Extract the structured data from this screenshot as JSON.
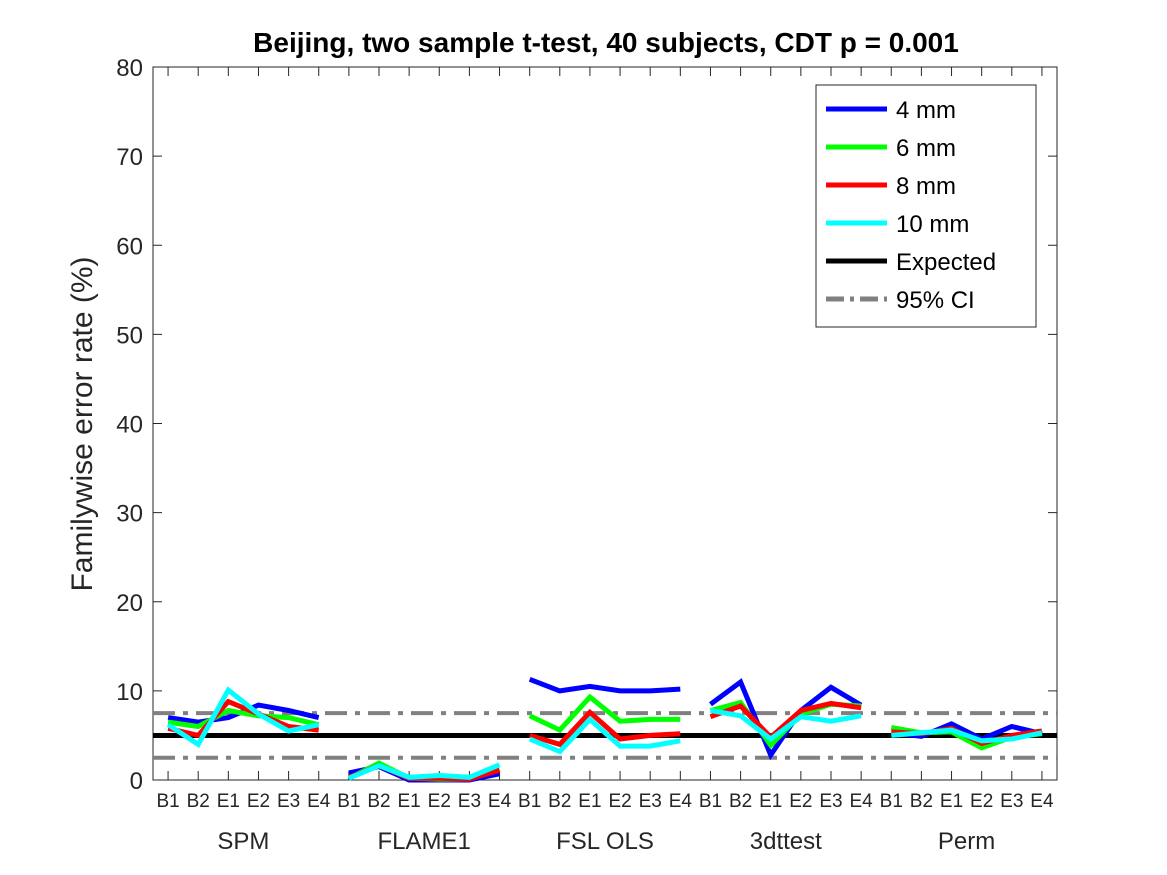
{
  "chart_data": {
    "type": "line",
    "title": "Beijing, two sample t-test, 40 subjects, CDT p = 0.001",
    "xlabel": "",
    "ylabel": "Familywise error rate (%)",
    "ylim": [
      0,
      80
    ],
    "yticks": [
      0,
      10,
      20,
      30,
      40,
      50,
      60,
      70,
      80
    ],
    "grid": false,
    "legend_position": "top-right",
    "x_tick_labels": [
      "B1",
      "B2",
      "E1",
      "E2",
      "E3",
      "E4",
      "B1",
      "B2",
      "E1",
      "E2",
      "E3",
      "E4",
      "B1",
      "B2",
      "E1",
      "E2",
      "E3",
      "E4",
      "B1",
      "B2",
      "E1",
      "E2",
      "E3",
      "E4",
      "B1",
      "B2",
      "E1",
      "E2",
      "E3",
      "E4"
    ],
    "groups": [
      "SPM",
      "FLAME1",
      "FSL OLS",
      "3dttest",
      "Perm"
    ],
    "series": [
      {
        "name": "4 mm",
        "color": "#0000ff",
        "values": [
          [
            7.0,
            6.5,
            7.0,
            8.4,
            7.8,
            7.0
          ],
          [
            0.8,
            1.5,
            0.0,
            0.0,
            0.0,
            0.7
          ],
          [
            11.3,
            10.0,
            10.5,
            10.0,
            10.0,
            10.2
          ],
          [
            8.5,
            11.0,
            2.8,
            7.8,
            10.4,
            8.4
          ],
          [
            5.3,
            4.9,
            6.3,
            4.6,
            6.0,
            5.2
          ]
        ]
      },
      {
        "name": "6 mm",
        "color": "#00ff00",
        "values": [
          [
            6.5,
            6.0,
            7.8,
            7.2,
            7.0,
            6.2
          ],
          [
            0.2,
            1.9,
            0.2,
            0.1,
            0.1,
            1.2
          ],
          [
            7.2,
            5.6,
            9.3,
            6.6,
            6.8,
            6.8
          ],
          [
            7.8,
            8.7,
            3.9,
            7.4,
            8.5,
            8.3
          ],
          [
            5.9,
            5.3,
            5.4,
            3.6,
            4.8,
            5.2
          ]
        ]
      },
      {
        "name": "8 mm",
        "color": "#ff0000",
        "values": [
          [
            5.8,
            5.0,
            8.8,
            7.4,
            6.0,
            5.6
          ],
          [
            0.3,
            1.6,
            0.2,
            0.2,
            0.1,
            1.1
          ],
          [
            5.0,
            4.0,
            7.6,
            4.6,
            5.0,
            5.2
          ],
          [
            7.1,
            8.3,
            4.8,
            7.8,
            8.6,
            8.1
          ],
          [
            5.4,
            5.2,
            5.8,
            4.1,
            5.0,
            5.5
          ]
        ]
      },
      {
        "name": "10 mm",
        "color": "#00ffff",
        "values": [
          [
            6.2,
            4.0,
            10.1,
            7.4,
            5.5,
            6.2
          ],
          [
            0.2,
            1.6,
            0.3,
            0.5,
            0.3,
            1.7
          ],
          [
            4.6,
            3.2,
            6.8,
            3.8,
            3.8,
            4.4
          ],
          [
            7.8,
            7.2,
            4.6,
            7.1,
            6.6,
            7.2
          ],
          [
            5.0,
            5.3,
            5.6,
            4.4,
            4.6,
            5.3
          ]
        ]
      }
    ],
    "reference_lines": [
      {
        "name": "Expected",
        "value": 5,
        "color": "#000000",
        "style": "solid"
      },
      {
        "name": "95% CI",
        "values": [
          2.5,
          7.5
        ],
        "color": "#808080",
        "style": "dashdot"
      }
    ]
  }
}
